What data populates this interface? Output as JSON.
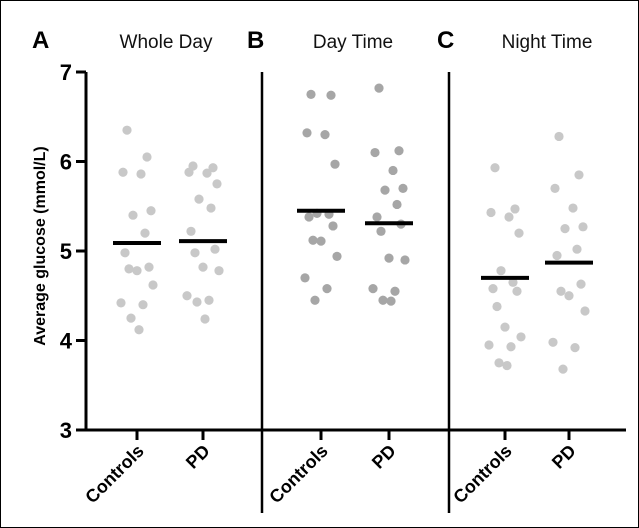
{
  "chart_data": {
    "type": "scatter",
    "ylabel": "Average glucose (mmol/L)",
    "ylim": [
      3,
      7
    ],
    "yticks": [
      3,
      4,
      5,
      6,
      7
    ],
    "grid": false,
    "categories": [
      "Controls",
      "PD"
    ],
    "colors": {
      "dots": "#c8c8c8",
      "dots_daytime": "#a6a6a6",
      "mean_bar": "#000000",
      "axis": "#000000"
    },
    "panels": [
      {
        "letter": "A",
        "title": "Whole Day",
        "groups": [
          {
            "category": "Controls",
            "mean": 5.09,
            "values": [
              6.35,
              6.05,
              5.88,
              5.86,
              5.45,
              5.4,
              5.2,
              4.98,
              4.82,
              4.8,
              4.78,
              4.62,
              4.42,
              4.4,
              4.25,
              4.12
            ]
          },
          {
            "category": "PD",
            "mean": 5.11,
            "values": [
              5.95,
              5.93,
              5.88,
              5.87,
              5.75,
              5.58,
              5.48,
              5.22,
              5.02,
              4.98,
              4.82,
              4.78,
              4.5,
              4.45,
              4.43,
              4.24
            ]
          }
        ]
      },
      {
        "letter": "B",
        "title": "Day Time",
        "groups": [
          {
            "category": "Controls",
            "mean": 5.45,
            "values": [
              6.75,
              6.74,
              6.32,
              6.3,
              5.97,
              5.42,
              5.41,
              5.38,
              5.28,
              5.12,
              5.11,
              4.94,
              4.7,
              4.58,
              4.45
            ]
          },
          {
            "category": "PD",
            "mean": 5.31,
            "values": [
              6.82,
              6.12,
              6.1,
              5.9,
              5.7,
              5.68,
              5.52,
              5.38,
              5.3,
              5.22,
              4.92,
              4.9,
              4.58,
              4.55,
              4.45,
              4.44
            ]
          }
        ]
      },
      {
        "letter": "C",
        "title": "Night Time",
        "groups": [
          {
            "category": "Controls",
            "mean": 4.7,
            "values": [
              5.93,
              5.47,
              5.43,
              5.38,
              5.2,
              4.78,
              4.65,
              4.58,
              4.55,
              4.38,
              4.15,
              4.04,
              3.95,
              3.93,
              3.75,
              3.72
            ]
          },
          {
            "category": "PD",
            "mean": 4.87,
            "values": [
              6.28,
              5.85,
              5.7,
              5.48,
              5.27,
              5.25,
              5.02,
              4.95,
              4.63,
              4.55,
              4.5,
              4.33,
              3.98,
              3.92,
              3.68
            ]
          }
        ]
      }
    ]
  }
}
